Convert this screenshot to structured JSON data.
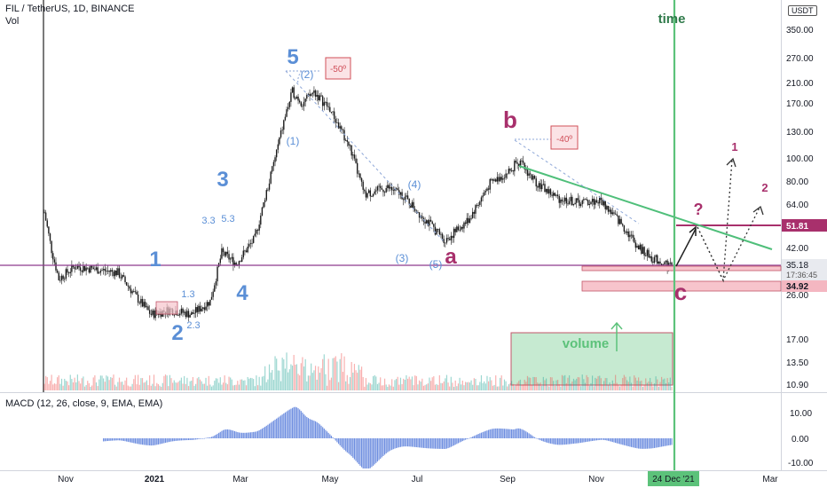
{
  "header": {
    "symbol_line": "FIL / TetherUS, 1D, BINANCE",
    "vol_label": "Vol",
    "currency": "USDT"
  },
  "macd": {
    "label": "MACD (12, 26, close, 9, EMA, EMA)",
    "ticks": [
      "10.00",
      "0.00",
      "-10.00"
    ]
  },
  "colors": {
    "bull": "#26a69a",
    "bear": "#ef5350",
    "wave_blue": "#5b8fd6",
    "wave_purple": "#a8306c",
    "time_line": "#5cc27a",
    "trendline": "#4fbf7a",
    "support": "#8e3a8e",
    "macd_hist": "#6f8fe0"
  },
  "chart_data": {
    "type": "candlestick",
    "scale": "log",
    "price_axis_labels": [
      "350.00",
      "270.00",
      "210.00",
      "170.00",
      "130.00",
      "100.00",
      "80.00",
      "64.00",
      "51.81",
      "42.00",
      "35.18",
      "34.92",
      "26.00",
      "17.00",
      "13.50",
      "10.90"
    ],
    "current_price": "35.18",
    "countdown": "17:36:45",
    "level_upper": "51.81",
    "level_lower": "34.92",
    "x_tick_labels": [
      "Nov",
      "2021",
      "Mar",
      "May",
      "Jul",
      "Sep",
      "Nov",
      "24 Dec '21",
      "Mar"
    ],
    "close_series": [
      {
        "date": "2020-10-15",
        "close": 59
      },
      {
        "date": "2020-10-20",
        "close": 41
      },
      {
        "date": "2020-10-25",
        "close": 31
      },
      {
        "date": "2020-11-05",
        "close": 35
      },
      {
        "date": "2020-11-20",
        "close": 34
      },
      {
        "date": "2020-12-05",
        "close": 33
      },
      {
        "date": "2020-12-20",
        "close": 25
      },
      {
        "date": "2020-12-28",
        "close": 22
      },
      {
        "date": "2021-01-10",
        "close": 23
      },
      {
        "date": "2021-01-25",
        "close": 22
      },
      {
        "date": "2021-02-07",
        "close": 25
      },
      {
        "date": "2021-02-15",
        "close": 40
      },
      {
        "date": "2021-02-25",
        "close": 36
      },
      {
        "date": "2021-03-10",
        "close": 46
      },
      {
        "date": "2021-03-20",
        "close": 80
      },
      {
        "date": "2021-03-31",
        "close": 150
      },
      {
        "date": "2021-04-05",
        "close": 190
      },
      {
        "date": "2021-04-12",
        "close": 170
      },
      {
        "date": "2021-04-20",
        "close": 190
      },
      {
        "date": "2021-05-01",
        "close": 160
      },
      {
        "date": "2021-05-15",
        "close": 110
      },
      {
        "date": "2021-05-25",
        "close": 70
      },
      {
        "date": "2021-06-10",
        "close": 75
      },
      {
        "date": "2021-06-20",
        "close": 70
      },
      {
        "date": "2021-07-05",
        "close": 56
      },
      {
        "date": "2021-07-20",
        "close": 45
      },
      {
        "date": "2021-08-05",
        "close": 55
      },
      {
        "date": "2021-08-20",
        "close": 78
      },
      {
        "date": "2021-09-05",
        "close": 90
      },
      {
        "date": "2021-09-07",
        "close": 100
      },
      {
        "date": "2021-09-20",
        "close": 80
      },
      {
        "date": "2021-10-05",
        "close": 68
      },
      {
        "date": "2021-10-20",
        "close": 65
      },
      {
        "date": "2021-11-05",
        "close": 66
      },
      {
        "date": "2021-11-20",
        "close": 52
      },
      {
        "date": "2021-12-01",
        "close": 42
      },
      {
        "date": "2021-12-10",
        "close": 38
      },
      {
        "date": "2021-12-24",
        "close": 35.18
      }
    ],
    "annotations": {
      "elliott_main": [
        "1",
        "2",
        "3",
        "4",
        "5"
      ],
      "elliott_sub_1": "1.3",
      "elliott_sub_2": "2.3",
      "elliott_sub_3a": "3.3",
      "elliott_sub_3b": "5.3",
      "sub_waves": [
        "(1)",
        "(2)",
        "(3)",
        "(4)",
        "(5)"
      ],
      "abc": [
        "a",
        "b",
        "c"
      ],
      "projection": [
        "1",
        "2"
      ],
      "question": "?",
      "angle1": "-50º",
      "angle2": "-40º",
      "time": "time",
      "volume": "volume"
    }
  }
}
